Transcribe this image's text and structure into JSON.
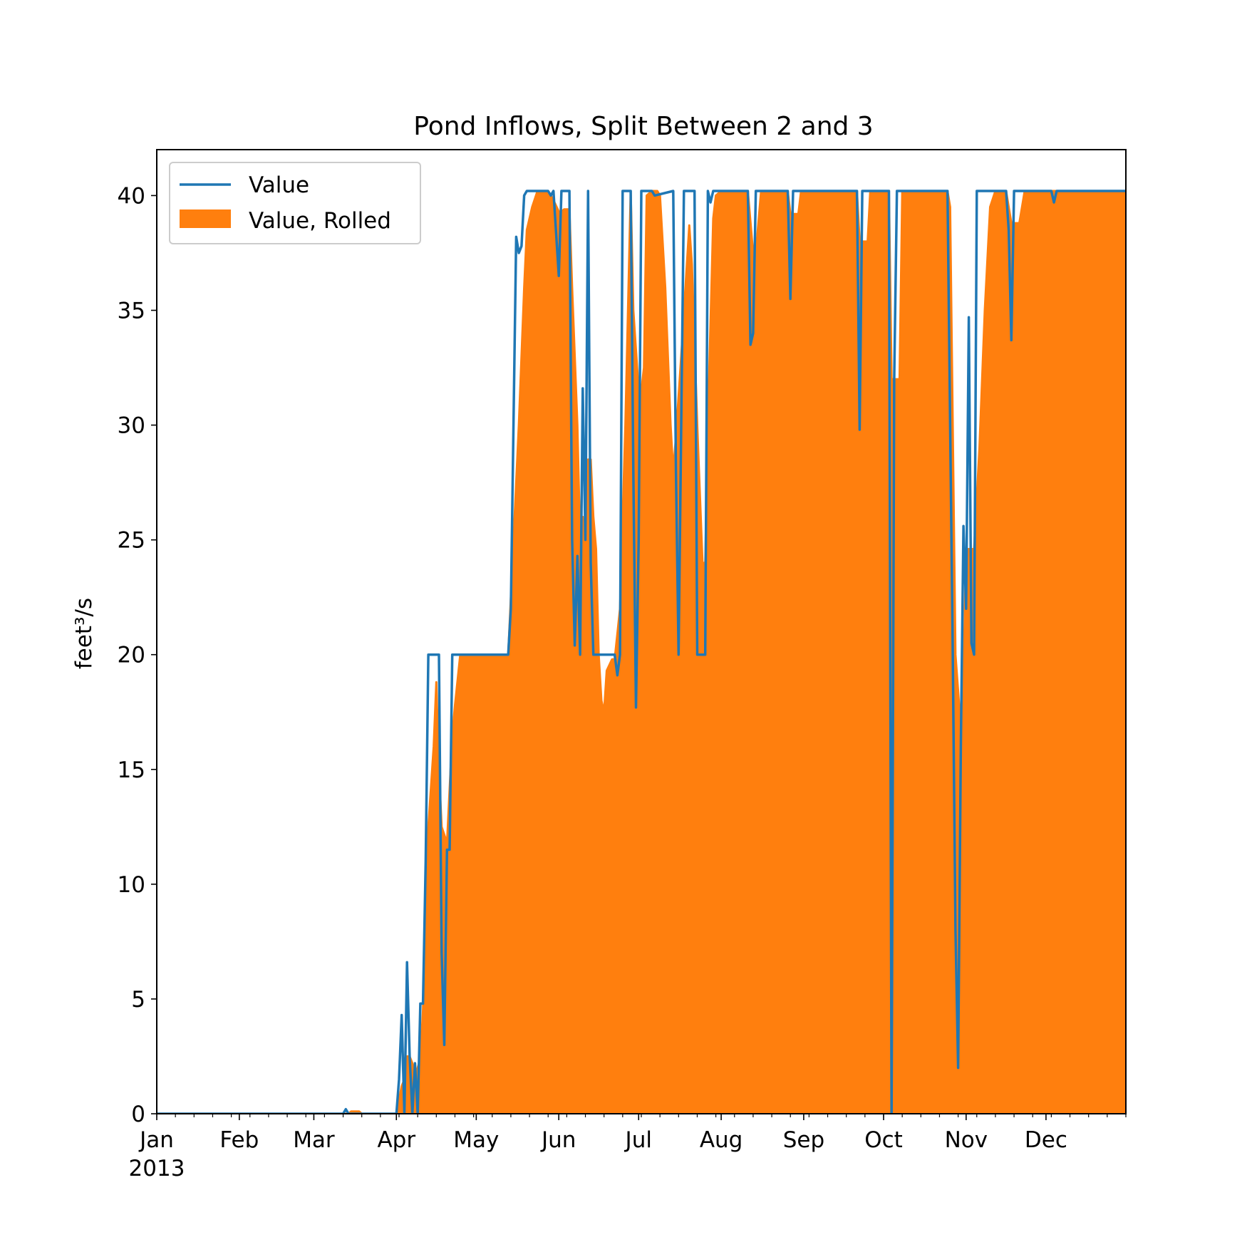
{
  "chart_data": {
    "type": "line",
    "title": "Pond Inflows, Split Between 2 and 3",
    "xlabel": "",
    "ylabel": "feet³/s",
    "ylim": [
      0,
      42
    ],
    "xlim": [
      "2013-01-01",
      "2013-12-31"
    ],
    "grid": false,
    "legend_placement": "top-left",
    "yticks": [
      0,
      5,
      10,
      15,
      20,
      25,
      30,
      35,
      40
    ],
    "xticks": [
      {
        "date": "2013-01-01",
        "label": "Jan"
      },
      {
        "date": "2013-02-01",
        "label": "Feb"
      },
      {
        "date": "2013-03-01",
        "label": "Mar"
      },
      {
        "date": "2013-04-01",
        "label": "Apr"
      },
      {
        "date": "2013-05-01",
        "label": "May"
      },
      {
        "date": "2013-06-01",
        "label": "Jun"
      },
      {
        "date": "2013-07-01",
        "label": "Jul"
      },
      {
        "date": "2013-08-01",
        "label": "Aug"
      },
      {
        "date": "2013-09-01",
        "label": "Sep"
      },
      {
        "date": "2013-10-01",
        "label": "Oct"
      },
      {
        "date": "2013-11-01",
        "label": "Nov"
      },
      {
        "date": "2013-12-01",
        "label": "Dec"
      }
    ],
    "year_label": "2013",
    "series": [
      {
        "name": "Value",
        "style": "line",
        "color": "#1f77b4",
        "points": [
          [
            "2013-01-01",
            0
          ],
          [
            "2013-03-12",
            0
          ],
          [
            "2013-03-13",
            0.2
          ],
          [
            "2013-03-14",
            0
          ],
          [
            "2013-04-01",
            0
          ],
          [
            "2013-04-02",
            1.5
          ],
          [
            "2013-04-03",
            4.3
          ],
          [
            "2013-04-04",
            0
          ],
          [
            "2013-04-05",
            6.6
          ],
          [
            "2013-04-06",
            2.5
          ],
          [
            "2013-04-07",
            0
          ],
          [
            "2013-04-08",
            2.2
          ],
          [
            "2013-04-09",
            0
          ],
          [
            "2013-04-10",
            4.8
          ],
          [
            "2013-04-11",
            4.8
          ],
          [
            "2013-04-12",
            11.0
          ],
          [
            "2013-04-13",
            20.0
          ],
          [
            "2013-04-17",
            20.0
          ],
          [
            "2013-04-18",
            7.0
          ],
          [
            "2013-04-19",
            3.0
          ],
          [
            "2013-04-20",
            11.5
          ],
          [
            "2013-04-21",
            11.5
          ],
          [
            "2013-04-22",
            20.0
          ],
          [
            "2013-04-24",
            20.0
          ],
          [
            "2013-04-25",
            20.0
          ],
          [
            "2013-05-13",
            20.0
          ],
          [
            "2013-05-14",
            22.0
          ],
          [
            "2013-05-16",
            38.2
          ],
          [
            "2013-05-17",
            37.5
          ],
          [
            "2013-05-18",
            37.8
          ],
          [
            "2013-05-19",
            40.0
          ],
          [
            "2013-05-20",
            40.2
          ],
          [
            "2013-05-28",
            40.2
          ],
          [
            "2013-05-29",
            40.0
          ],
          [
            "2013-05-30",
            40.2
          ],
          [
            "2013-06-01",
            36.5
          ],
          [
            "2013-06-02",
            40.2
          ],
          [
            "2013-06-05",
            40.2
          ],
          [
            "2013-06-06",
            25.0
          ],
          [
            "2013-06-07",
            20.4
          ],
          [
            "2013-06-08",
            24.3
          ],
          [
            "2013-06-09",
            20.0
          ],
          [
            "2013-06-10",
            31.6
          ],
          [
            "2013-06-11",
            25.0
          ],
          [
            "2013-06-12",
            40.2
          ],
          [
            "2013-06-13",
            24.0
          ],
          [
            "2013-06-14",
            20.0
          ],
          [
            "2013-06-22",
            20.0
          ],
          [
            "2013-06-23",
            19.1
          ],
          [
            "2013-06-24",
            20.0
          ],
          [
            "2013-06-25",
            40.2
          ],
          [
            "2013-06-28",
            40.2
          ],
          [
            "2013-06-29",
            28.0
          ],
          [
            "2013-06-30",
            17.7
          ],
          [
            "2013-07-01",
            25.0
          ],
          [
            "2013-07-02",
            40.2
          ],
          [
            "2013-07-06",
            40.2
          ],
          [
            "2013-07-07",
            40.0
          ],
          [
            "2013-07-14",
            40.2
          ],
          [
            "2013-07-15",
            28.0
          ],
          [
            "2013-07-16",
            20.0
          ],
          [
            "2013-07-17",
            30.0
          ],
          [
            "2013-07-18",
            40.2
          ],
          [
            "2013-07-22",
            40.2
          ],
          [
            "2013-07-23",
            20.0
          ],
          [
            "2013-07-26",
            20.0
          ],
          [
            "2013-07-27",
            40.2
          ],
          [
            "2013-07-28",
            39.7
          ],
          [
            "2013-07-29",
            40.2
          ],
          [
            "2013-08-11",
            40.2
          ],
          [
            "2013-08-12",
            33.5
          ],
          [
            "2013-08-13",
            34.0
          ],
          [
            "2013-08-14",
            40.2
          ],
          [
            "2013-08-26",
            40.2
          ],
          [
            "2013-08-27",
            35.5
          ],
          [
            "2013-08-28",
            40.2
          ],
          [
            "2013-09-21",
            40.2
          ],
          [
            "2013-09-22",
            29.8
          ],
          [
            "2013-09-23",
            40.2
          ],
          [
            "2013-10-01",
            40.2
          ],
          [
            "2013-10-03",
            40.2
          ],
          [
            "2013-10-04",
            0
          ],
          [
            "2013-10-05",
            32.0
          ],
          [
            "2013-10-06",
            40.2
          ],
          [
            "2013-10-25",
            40.2
          ],
          [
            "2013-10-26",
            30.0
          ],
          [
            "2013-10-27",
            20.0
          ],
          [
            "2013-10-28",
            8.0
          ],
          [
            "2013-10-29",
            2.0
          ],
          [
            "2013-10-30",
            16.0
          ],
          [
            "2013-10-31",
            25.6
          ],
          [
            "2013-11-01",
            22.0
          ],
          [
            "2013-11-02",
            34.7
          ],
          [
            "2013-11-03",
            20.5
          ],
          [
            "2013-11-04",
            20.0
          ],
          [
            "2013-11-05",
            40.2
          ],
          [
            "2013-11-16",
            40.2
          ],
          [
            "2013-11-17",
            38.5
          ],
          [
            "2013-11-18",
            33.7
          ],
          [
            "2013-11-19",
            40.2
          ],
          [
            "2013-12-03",
            40.2
          ],
          [
            "2013-12-04",
            39.7
          ],
          [
            "2013-12-05",
            40.2
          ],
          [
            "2013-12-31",
            40.2
          ]
        ]
      },
      {
        "name": "Value, Rolled",
        "style": "fill",
        "color": "#ff7f0e",
        "points": [
          [
            "2013-01-01",
            0
          ],
          [
            "2013-03-14",
            0
          ],
          [
            "2013-03-15",
            0.1
          ],
          [
            "2013-03-18",
            0.1
          ],
          [
            "2013-03-19",
            0
          ],
          [
            "2013-04-01",
            0
          ],
          [
            "2013-04-03",
            1.2
          ],
          [
            "2013-04-04",
            1.5
          ],
          [
            "2013-04-05",
            2.5
          ],
          [
            "2013-04-06",
            2.5
          ],
          [
            "2013-04-07",
            2.2
          ],
          [
            "2013-04-08",
            1.6
          ],
          [
            "2013-04-09",
            2.0
          ],
          [
            "2013-04-10",
            2.4
          ],
          [
            "2013-04-11",
            4.5
          ],
          [
            "2013-04-12",
            8.5
          ],
          [
            "2013-04-13",
            12.5
          ],
          [
            "2013-04-15",
            16.0
          ],
          [
            "2013-04-16",
            18.8
          ],
          [
            "2013-04-17",
            15.0
          ],
          [
            "2013-04-18",
            12.5
          ],
          [
            "2013-04-20",
            11.8
          ],
          [
            "2013-04-22",
            16.5
          ],
          [
            "2013-04-23",
            17.8
          ],
          [
            "2013-04-25",
            20.0
          ],
          [
            "2013-05-13",
            20.0
          ],
          [
            "2013-05-15",
            25.0
          ],
          [
            "2013-05-17",
            30.0
          ],
          [
            "2013-05-19",
            36.0
          ],
          [
            "2013-05-20",
            38.5
          ],
          [
            "2013-05-22",
            39.5
          ],
          [
            "2013-05-24",
            40.2
          ],
          [
            "2013-05-28",
            40.2
          ],
          [
            "2013-05-30",
            39.8
          ],
          [
            "2013-06-01",
            39.3
          ],
          [
            "2013-06-02",
            39.3
          ],
          [
            "2013-06-03",
            39.4
          ],
          [
            "2013-06-05",
            39.4
          ],
          [
            "2013-06-06",
            36.0
          ],
          [
            "2013-06-08",
            30.0
          ],
          [
            "2013-06-09",
            25.0
          ],
          [
            "2013-06-10",
            26.0
          ],
          [
            "2013-06-11",
            24.0
          ],
          [
            "2013-06-12",
            28.5
          ],
          [
            "2013-06-13",
            28.5
          ],
          [
            "2013-06-14",
            26.0
          ],
          [
            "2013-06-15",
            24.6
          ],
          [
            "2013-06-16",
            20.0
          ],
          [
            "2013-06-17",
            18.0
          ],
          [
            "2013-06-18",
            17.5
          ],
          [
            "2013-06-19",
            19.3
          ],
          [
            "2013-06-21",
            19.8
          ],
          [
            "2013-06-22",
            19.8
          ],
          [
            "2013-06-24",
            22.0
          ],
          [
            "2013-06-26",
            30.0
          ],
          [
            "2013-06-28",
            40.2
          ],
          [
            "2013-06-29",
            35.0
          ],
          [
            "2013-07-01",
            31.5
          ],
          [
            "2013-07-02",
            31.5
          ],
          [
            "2013-07-03",
            32.5
          ],
          [
            "2013-07-04",
            40.0
          ],
          [
            "2013-07-06",
            40.2
          ],
          [
            "2013-07-08",
            40.2
          ],
          [
            "2013-07-09",
            40.0
          ],
          [
            "2013-07-11",
            36.0
          ],
          [
            "2013-07-13",
            30.0
          ],
          [
            "2013-07-14",
            28.0
          ],
          [
            "2013-07-15",
            29.5
          ],
          [
            "2013-07-17",
            33.0
          ],
          [
            "2013-07-20",
            38.7
          ],
          [
            "2013-07-21",
            37.0
          ],
          [
            "2013-07-23",
            30.0
          ],
          [
            "2013-07-25",
            24.0
          ],
          [
            "2013-07-26",
            24.0
          ],
          [
            "2013-07-27",
            30.0
          ],
          [
            "2013-07-29",
            39.0
          ],
          [
            "2013-07-30",
            40.0
          ],
          [
            "2013-08-01",
            40.2
          ],
          [
            "2013-08-11",
            40.2
          ],
          [
            "2013-08-13",
            37.5
          ],
          [
            "2013-08-14",
            37.5
          ],
          [
            "2013-08-16",
            40.2
          ],
          [
            "2013-08-26",
            40.2
          ],
          [
            "2013-08-27",
            39.2
          ],
          [
            "2013-08-30",
            39.2
          ],
          [
            "2013-08-31",
            40.2
          ],
          [
            "2013-09-21",
            40.2
          ],
          [
            "2013-09-22",
            38.0
          ],
          [
            "2013-09-25",
            38.0
          ],
          [
            "2013-09-26",
            40.2
          ],
          [
            "2013-10-03",
            40.2
          ],
          [
            "2013-10-04",
            32.0
          ],
          [
            "2013-10-07",
            32.0
          ],
          [
            "2013-10-08",
            40.2
          ],
          [
            "2013-10-25",
            40.2
          ],
          [
            "2013-10-26",
            39.5
          ],
          [
            "2013-10-28",
            20.0
          ],
          [
            "2013-10-30",
            16.8
          ],
          [
            "2013-10-31",
            19.0
          ],
          [
            "2013-11-01",
            24.6
          ],
          [
            "2013-11-04",
            24.6
          ],
          [
            "2013-11-06",
            29.0
          ],
          [
            "2013-11-08",
            35.0
          ],
          [
            "2013-11-10",
            39.5
          ],
          [
            "2013-11-12",
            40.2
          ],
          [
            "2013-11-16",
            40.2
          ],
          [
            "2013-11-18",
            38.8
          ],
          [
            "2013-11-21",
            38.8
          ],
          [
            "2013-11-23",
            40.2
          ],
          [
            "2013-12-31",
            40.2
          ]
        ]
      }
    ]
  }
}
